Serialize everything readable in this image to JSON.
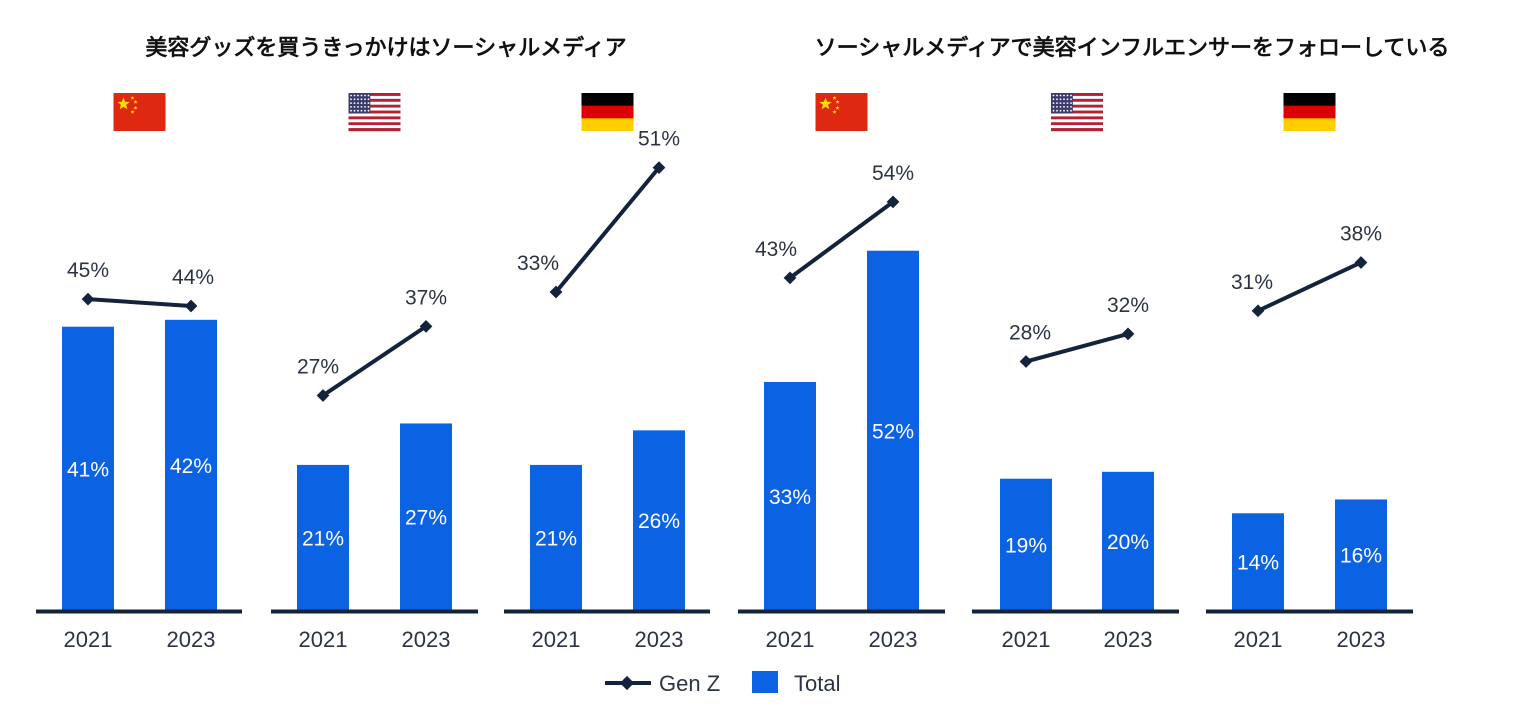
{
  "colors": {
    "bar": "#0b63e3",
    "line": "#14233c",
    "axis": "#14233c",
    "flag_china_red": "#de2910",
    "flag_china_star": "#ffde00",
    "flag_us_red": "#b22234",
    "flag_us_blue": "#3c3b6e",
    "flag_de_black": "#000000",
    "flag_de_red": "#dd0000",
    "flag_de_gold": "#ffce00"
  },
  "section_titles": [
    "美容グッズを買うきっかけはソーシャルメディア",
    "ソーシャルメディアで美容インフルエンサーをフォローしている"
  ],
  "legend": {
    "line_label": "Gen Z",
    "bar_label": "Total"
  },
  "chart_data": [
    {
      "type": "bar+line",
      "section": 0,
      "country_flag": "china-flag-icon",
      "categories": [
        "2021",
        "2023"
      ],
      "series": [
        {
          "name": "Total",
          "values": [
            41,
            42
          ]
        },
        {
          "name": "Gen Z",
          "values": [
            45,
            44
          ]
        }
      ],
      "bar_labels": [
        "41%",
        "42%"
      ],
      "line_labels": [
        "45%",
        "44%"
      ],
      "ylim": [
        0,
        60
      ]
    },
    {
      "type": "bar+line",
      "section": 0,
      "country_flag": "us-flag-icon",
      "categories": [
        "2021",
        "2023"
      ],
      "series": [
        {
          "name": "Total",
          "values": [
            21,
            27
          ]
        },
        {
          "name": "Gen Z",
          "values": [
            27,
            37
          ]
        }
      ],
      "bar_labels": [
        "21%",
        "27%"
      ],
      "line_labels": [
        "27%",
        "37%"
      ],
      "ylim": [
        0,
        60
      ]
    },
    {
      "type": "bar+line",
      "section": 0,
      "country_flag": "germany-flag-icon",
      "categories": [
        "2021",
        "2023"
      ],
      "series": [
        {
          "name": "Total",
          "values": [
            21,
            26
          ]
        },
        {
          "name": "Gen Z",
          "values": [
            33,
            51
          ]
        }
      ],
      "bar_labels": [
        "21%",
        "26%"
      ],
      "line_labels": [
        "33%",
        "51%"
      ],
      "ylim": [
        0,
        60
      ]
    },
    {
      "type": "bar+line",
      "section": 1,
      "country_flag": "china-flag-icon",
      "categories": [
        "2021",
        "2023"
      ],
      "series": [
        {
          "name": "Total",
          "values": [
            33,
            52
          ]
        },
        {
          "name": "Gen Z",
          "values": [
            43,
            54
          ]
        }
      ],
      "bar_labels": [
        "33%",
        "52%"
      ],
      "line_labels": [
        "43%",
        "54%"
      ],
      "ylim": [
        0,
        60
      ]
    },
    {
      "type": "bar+line",
      "section": 1,
      "country_flag": "us-flag-icon",
      "categories": [
        "2021",
        "2023"
      ],
      "series": [
        {
          "name": "Total",
          "values": [
            19,
            20
          ]
        },
        {
          "name": "Gen Z",
          "values": [
            28,
            32
          ]
        }
      ],
      "bar_labels": [
        "19%",
        "20%"
      ],
      "line_labels": [
        "28%",
        "32%"
      ],
      "ylim": [
        0,
        60
      ]
    },
    {
      "type": "bar+line",
      "section": 1,
      "country_flag": "germany-flag-icon",
      "categories": [
        "2021",
        "2023"
      ],
      "series": [
        {
          "name": "Total",
          "values": [
            14,
            16
          ]
        },
        {
          "name": "Gen Z",
          "values": [
            31,
            38
          ]
        }
      ],
      "bar_labels": [
        "14%",
        "16%"
      ],
      "line_labels": [
        "31%",
        "38%"
      ],
      "ylim": [
        0,
        60
      ]
    }
  ]
}
